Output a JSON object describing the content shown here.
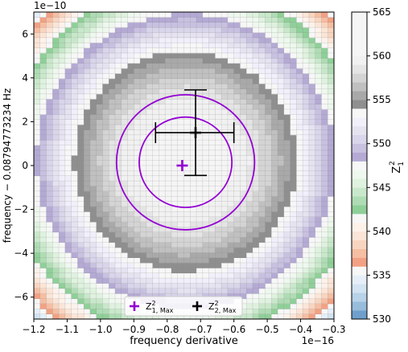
{
  "chart_data": {
    "type": "heatmap",
    "title": "",
    "xlabel": "frequency derivative",
    "ylabel": "frequency − 0.08794773234 Hz",
    "x_offset_text": "1e−16",
    "y_offset_text": "1e−10",
    "xlim": [
      -1.2,
      -0.3
    ],
    "ylim": [
      -7,
      7
    ],
    "xticks": [
      -1.2,
      -1.1,
      -1.0,
      -0.9,
      -0.8,
      -0.7,
      -0.6,
      -0.5,
      -0.4,
      -0.3
    ],
    "xtick_labels": [
      "−1.2",
      "−1.1",
      "−1.0",
      "−0.9",
      "−0.8",
      "−0.7",
      "−0.6",
      "−0.5",
      "−0.4",
      "−0.3"
    ],
    "yticks": [
      -6,
      -4,
      -2,
      0,
      2,
      4,
      6
    ],
    "ytick_labels": [
      "−6",
      "−4",
      "−2",
      "0",
      "2",
      "4",
      "6"
    ],
    "colorbar": {
      "label": "Z",
      "label_sub": "1",
      "label_sup": "2",
      "min": 530,
      "max": 565,
      "step": 1,
      "ticks": [
        530,
        535,
        540,
        545,
        550,
        555,
        560,
        565
      ],
      "tick_labels": [
        "530",
        "535",
        "540",
        "545",
        "550",
        "555",
        "560",
        "565"
      ],
      "colors": [
        "#6f9fcc",
        "#98bcdc",
        "#b8d2e8",
        "#d2e3f1",
        "#e6eff8",
        "#f7f7f7",
        "#f2a184",
        "#f6bea2",
        "#f8d5c0",
        "#fbe5d7",
        "#fdf2ea",
        "#f7f7f7",
        "#8fcf98",
        "#afdcb4",
        "#c9e8cb",
        "#dff1df",
        "#eef8ee",
        "#f7f7f7",
        "#b4aad4",
        "#c8c1e0",
        "#d9d5ea",
        "#e6e3f1",
        "#f1effa",
        "#f7f7f7",
        "#8f8f8f",
        "#a9a9a9",
        "#c0c0c0",
        "#d4d4d4",
        "#e5e5e5",
        "#f1f1f1",
        "#f5f5f5",
        "#f5f5f5",
        "#f5f5f5",
        "#f5f5f5",
        "#f5f5f5"
      ]
    },
    "surface": {
      "peak_value": 561.5,
      "peak_center": [
        -0.745,
        0.2
      ],
      "x_half_scale": 0.69,
      "y_half_scale": 10.35,
      "edge_value": 529.5
    },
    "contours": {
      "color": "#9400d3",
      "center": [
        -0.745,
        0.15
      ],
      "levels": [
        {
          "x_radius": 0.139,
          "y_radius": 2.06
        },
        {
          "x_radius": 0.207,
          "y_radius": 3.08
        }
      ]
    },
    "markers": [
      {
        "name": "Z^2_1,Max",
        "label_main": "Z",
        "label_sup": "2",
        "label_sub": "1, Max",
        "x": -0.755,
        "y": 0.0,
        "color": "#9400d3",
        "xerr": null,
        "yerr": null
      },
      {
        "name": "Z^2_2,Max",
        "label_main": "Z",
        "label_sup": "2",
        "label_sub": "2, Max",
        "x": -0.715,
        "y": 1.5,
        "color": "#000000",
        "xerr": [
          0.12,
          0.115
        ],
        "yerr": [
          1.95,
          1.95
        ]
      }
    ],
    "grid": true,
    "legend_position": "bottom-center"
  }
}
